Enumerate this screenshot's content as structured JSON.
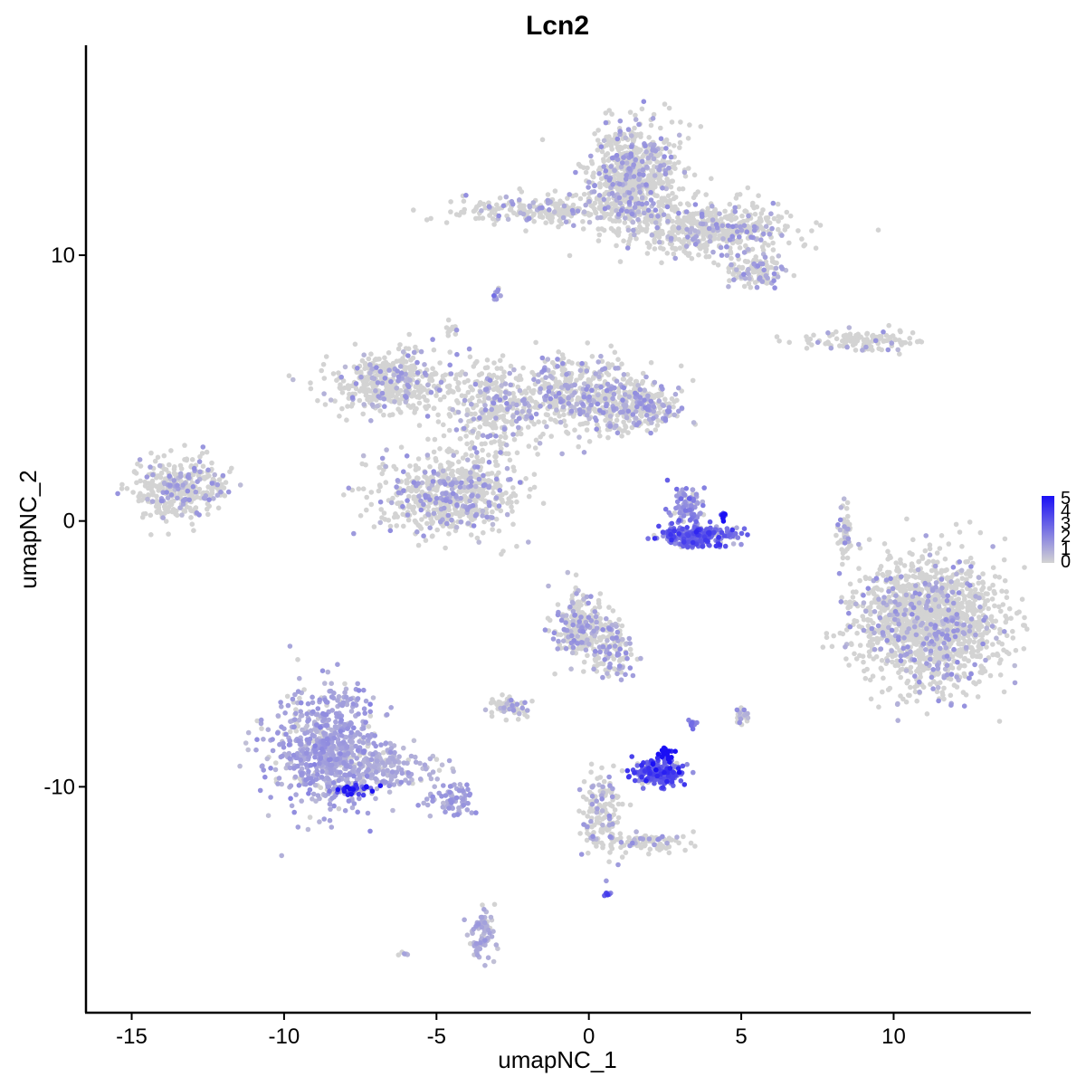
{
  "chart_data": {
    "type": "scatter",
    "title": "Lcn2",
    "xlabel": "umapNC_1",
    "ylabel": "umapNC_2",
    "xlim": [
      -16.5,
      14.5
    ],
    "ylim": [
      -18.5,
      17.9
    ],
    "x_ticks": [
      -15,
      -10,
      -5,
      0,
      5,
      10
    ],
    "x_tick_labels": [
      "-15",
      "-10",
      "-5",
      "0",
      "5",
      "10"
    ],
    "y_ticks": [
      -10,
      0,
      10
    ],
    "y_tick_labels": [
      "-10",
      "0",
      "10"
    ],
    "grid": false,
    "legend": {
      "position": "right",
      "labels": [
        "5",
        "4",
        "3",
        "2",
        "1",
        "0"
      ],
      "values": [
        5,
        4,
        3,
        2,
        1,
        0
      ],
      "color_low": "#d3d3d3",
      "color_high": "#1a0ff5"
    },
    "point_color_low": "#d3d3d3",
    "point_color_high": "#1a0ff5",
    "clusters": [
      {
        "x": 1.5,
        "y": 13.0,
        "sx": 0.9,
        "sy": 1.2,
        "n": 700,
        "expr": 0.05
      },
      {
        "x": 4.0,
        "y": 11.0,
        "sx": 1.8,
        "sy": 0.6,
        "n": 500,
        "expr": 0.05
      },
      {
        "x": -1.5,
        "y": 11.7,
        "sx": 1.8,
        "sy": 0.35,
        "n": 250,
        "expr": 0.05
      },
      {
        "x": 5.5,
        "y": 9.4,
        "sx": 0.6,
        "sy": 0.4,
        "n": 120,
        "expr": 0.1
      },
      {
        "x": 9.0,
        "y": 6.8,
        "sx": 1.3,
        "sy": 0.25,
        "n": 120,
        "expr": 0.05
      },
      {
        "x": -6.5,
        "y": 5.2,
        "sx": 1.3,
        "sy": 0.7,
        "n": 450,
        "expr": 0.05
      },
      {
        "x": -3.2,
        "y": 4.0,
        "sx": 1.0,
        "sy": 1.2,
        "n": 300,
        "expr": 0.05
      },
      {
        "x": -0.5,
        "y": 4.8,
        "sx": 1.3,
        "sy": 0.9,
        "n": 450,
        "expr": 0.08
      },
      {
        "x": 1.6,
        "y": 4.3,
        "sx": 0.9,
        "sy": 0.55,
        "n": 250,
        "expr": 0.08
      },
      {
        "x": -4.6,
        "y": 1.0,
        "sx": 1.4,
        "sy": 0.9,
        "n": 650,
        "expr": 0.06
      },
      {
        "x": -13.4,
        "y": 1.2,
        "sx": 0.9,
        "sy": 0.7,
        "n": 350,
        "expr": 0.05
      },
      {
        "x": 3.6,
        "y": -0.6,
        "sx": 0.75,
        "sy": 0.25,
        "n": 280,
        "expr": 2.6
      },
      {
        "x": 3.3,
        "y": 0.6,
        "sx": 0.35,
        "sy": 0.5,
        "n": 80,
        "expr": 1.8
      },
      {
        "x": 4.4,
        "y": 0.2,
        "sx": 0.1,
        "sy": 0.1,
        "n": 12,
        "expr": 4.8
      },
      {
        "x": 11.2,
        "y": -3.8,
        "sx": 1.5,
        "sy": 1.5,
        "n": 1500,
        "expr": 0.04
      },
      {
        "x": 8.4,
        "y": -0.5,
        "sx": 0.15,
        "sy": 0.6,
        "n": 60,
        "expr": 0.05
      },
      {
        "x": -0.3,
        "y": -4.0,
        "sx": 0.5,
        "sy": 0.8,
        "n": 250,
        "expr": 0.08
      },
      {
        "x": 0.8,
        "y": -4.8,
        "sx": 0.4,
        "sy": 0.7,
        "n": 120,
        "expr": 0.08
      },
      {
        "x": -2.5,
        "y": -7.0,
        "sx": 0.45,
        "sy": 0.25,
        "n": 70,
        "expr": 0.05
      },
      {
        "x": -8.7,
        "y": -8.5,
        "sx": 1.1,
        "sy": 1.4,
        "n": 650,
        "expr": 1.2
      },
      {
        "x": -6.8,
        "y": -9.3,
        "sx": 1.1,
        "sy": 0.5,
        "n": 200,
        "expr": 0.9
      },
      {
        "x": -4.5,
        "y": -10.5,
        "sx": 0.5,
        "sy": 0.4,
        "n": 80,
        "expr": 0.3
      },
      {
        "x": -3.5,
        "y": -15.5,
        "sx": 0.25,
        "sy": 0.6,
        "n": 80,
        "expr": 1.0
      },
      {
        "x": -7.8,
        "y": -10.1,
        "sx": 0.4,
        "sy": 0.12,
        "n": 40,
        "expr": 3.8
      },
      {
        "x": 2.3,
        "y": -9.5,
        "sx": 0.55,
        "sy": 0.3,
        "n": 200,
        "expr": 3.0
      },
      {
        "x": 2.5,
        "y": -8.8,
        "sx": 0.15,
        "sy": 0.15,
        "n": 25,
        "expr": 4.9
      },
      {
        "x": 0.4,
        "y": -11.0,
        "sx": 0.4,
        "sy": 1.0,
        "n": 150,
        "expr": 0.05
      },
      {
        "x": 1.8,
        "y": -12.1,
        "sx": 1.0,
        "sy": 0.2,
        "n": 90,
        "expr": 0.05
      },
      {
        "x": 5.0,
        "y": -7.4,
        "sx": 0.15,
        "sy": 0.2,
        "n": 25,
        "expr": 0.1
      },
      {
        "x": 3.4,
        "y": -7.6,
        "sx": 0.1,
        "sy": 0.15,
        "n": 12,
        "expr": 2.0
      },
      {
        "x": 0.6,
        "y": -14.0,
        "sx": 0.08,
        "sy": 0.08,
        "n": 8,
        "expr": 3.0
      },
      {
        "x": -6.1,
        "y": -16.3,
        "sx": 0.1,
        "sy": 0.05,
        "n": 6,
        "expr": 0.05
      },
      {
        "x": -4.5,
        "y": 7.2,
        "sx": 0.15,
        "sy": 0.2,
        "n": 12,
        "expr": 0.05
      },
      {
        "x": -3.0,
        "y": 8.5,
        "sx": 0.1,
        "sy": 0.15,
        "n": 10,
        "expr": 1.5
      }
    ]
  }
}
